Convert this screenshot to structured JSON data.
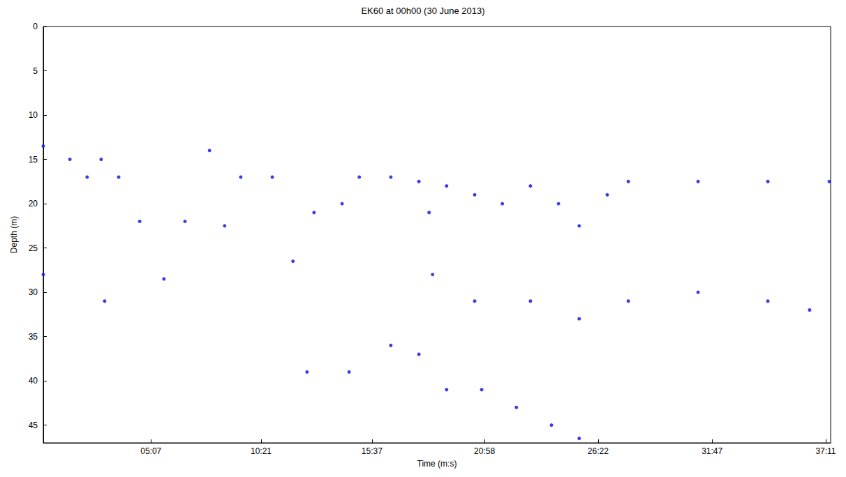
{
  "chart_data": {
    "type": "scatter",
    "title": "EK60 at 00h00 (30 June 2013)",
    "x_label": "Time (m:s)",
    "y_label": "Depth (m)",
    "x": [
      0,
      76,
      125,
      165,
      215,
      275,
      344,
      404,
      474,
      517,
      563,
      653,
      712,
      772,
      852,
      901,
      991,
      1071,
      1100,
      1150,
      1230,
      1309,
      1389,
      1469,
      1528,
      1608,
      1668,
      1867,
      2066,
      2241,
      0,
      175,
      752,
      872,
      991,
      1071,
      1150,
      1250,
      1349,
      1449,
      1528,
      1110,
      1230,
      1389,
      1528,
      1668,
      1867,
      2066,
      2185
    ],
    "values": [
      13.5,
      15,
      17,
      15,
      17,
      22,
      28.5,
      22,
      14,
      22.5,
      17,
      17,
      26.5,
      21,
      20,
      17,
      17,
      17.5,
      21,
      18,
      19,
      20,
      18,
      20,
      22.5,
      19,
      17.5,
      17.5,
      17.5,
      17.5,
      28,
      31,
      39,
      39,
      36,
      37,
      41,
      41,
      43,
      45,
      46.5,
      28,
      31,
      31,
      33,
      31,
      30,
      31,
      32
    ],
    "color": "#1a1adf",
    "marker": "circle",
    "grid": false,
    "xlim": [
      0,
      2245
    ],
    "xticks": [
      {
        "value": 307,
        "label": "05:07"
      },
      {
        "value": 621,
        "label": "10:21"
      },
      {
        "value": 937,
        "label": "15:37"
      },
      {
        "value": 1258,
        "label": "20:58"
      },
      {
        "value": 1582,
        "label": "26:22"
      },
      {
        "value": 1907,
        "label": "31:47"
      },
      {
        "value": 2231,
        "label": "37:11"
      }
    ],
    "ylim": [
      0,
      47
    ],
    "yticks": [
      0,
      5,
      10,
      15,
      20,
      25,
      30,
      35,
      40,
      45
    ]
  }
}
